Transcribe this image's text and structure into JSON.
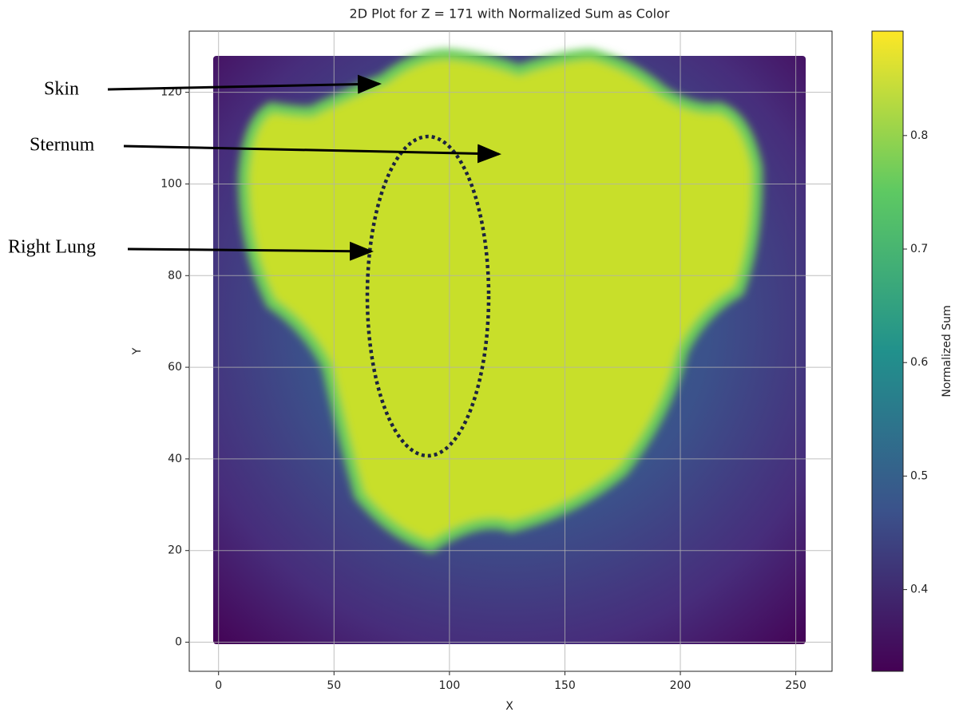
{
  "chart_data": {
    "type": "image",
    "title": "2D Plot for Z = 171 with Normalized Sum as Color",
    "xlabel": "X",
    "ylabel": "Y",
    "xlim": [
      -12.7,
      265.7
    ],
    "xticks": [
      0,
      50,
      100,
      150,
      200,
      250
    ],
    "ylim": [
      -6.35,
      133.35
    ],
    "yticks": [
      0,
      20,
      40,
      60,
      80,
      100,
      120
    ],
    "grid": true,
    "colorbar": {
      "label": "Normalized Sum",
      "colormap": "viridis",
      "lim": [
        0.328,
        0.892
      ],
      "ticks": [
        0.4,
        0.5,
        0.6,
        0.7,
        0.8
      ]
    },
    "annotations": [
      "Skin",
      "Sternum",
      "Right Lung"
    ]
  }
}
